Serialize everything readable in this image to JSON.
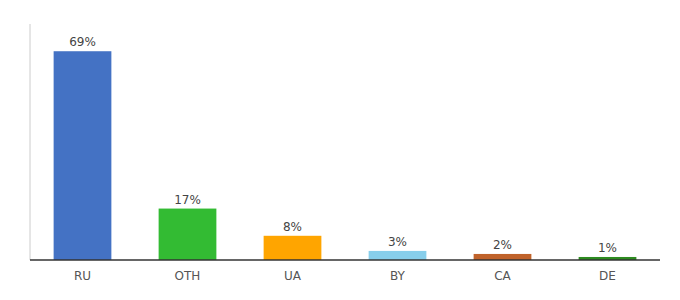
{
  "chart_data": {
    "type": "bar",
    "categories": [
      "RU",
      "OTH",
      "UA",
      "BY",
      "CA",
      "DE"
    ],
    "values": [
      69,
      17,
      8,
      3,
      2,
      1
    ],
    "value_labels": [
      "69%",
      "17%",
      "8%",
      "3%",
      "2%",
      "1%"
    ],
    "colors": [
      "#4472C4",
      "#33BB33",
      "#FFA500",
      "#87CEEB",
      "#C0622A",
      "#2E8B20"
    ],
    "ylim": [
      0,
      78
    ],
    "data_labels": true,
    "tick_labels": "x",
    "grid": false
  }
}
